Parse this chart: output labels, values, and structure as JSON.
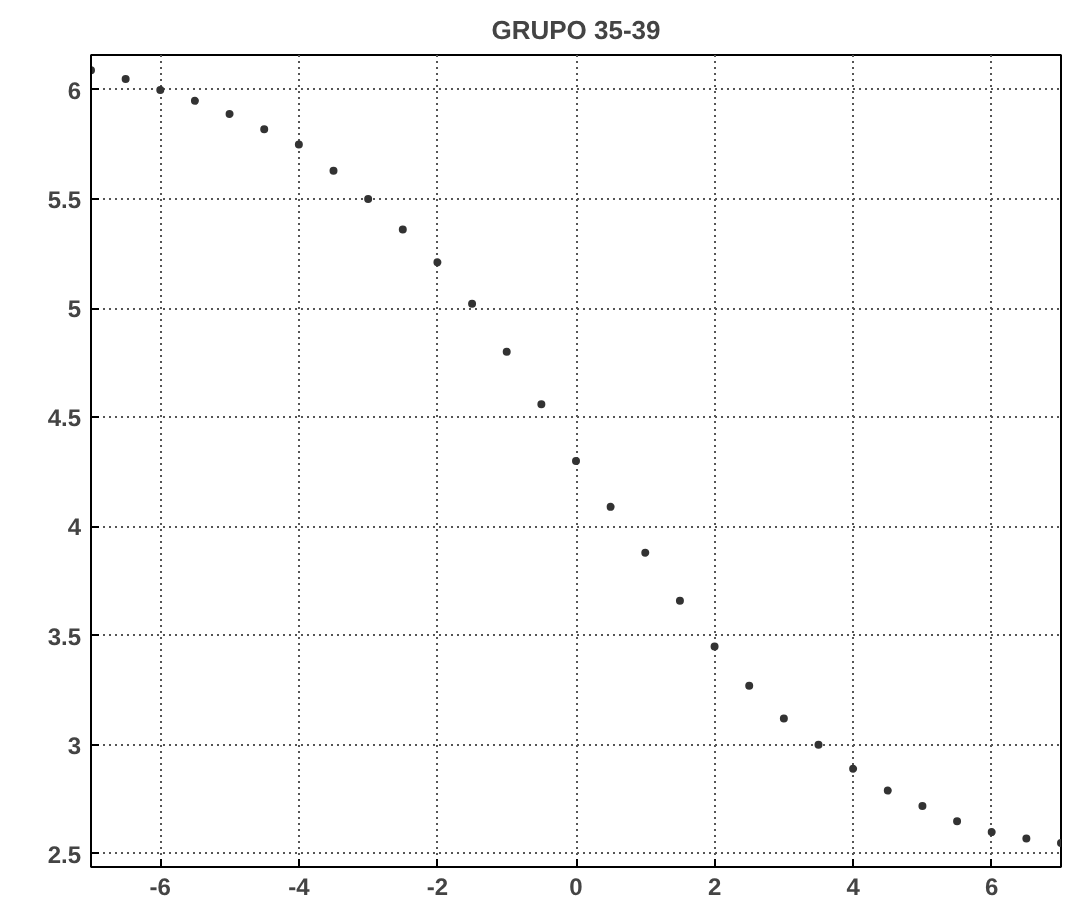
{
  "chart_data": {
    "type": "scatter",
    "title": "GRUPO 35-39",
    "x": [
      -7,
      -6.5,
      -6,
      -5.5,
      -5,
      -4.5,
      -4,
      -3.5,
      -3,
      -2.5,
      -2,
      -1.5,
      -1,
      -0.5,
      0,
      0.5,
      1,
      1.5,
      2,
      2.5,
      3,
      3.5,
      4,
      4.5,
      5,
      5.5,
      6,
      6.5,
      7
    ],
    "series": [
      {
        "color": "#333333",
        "values": [
          6.09,
          6.05,
          6.0,
          5.95,
          5.89,
          5.82,
          5.75,
          5.63,
          5.5,
          5.36,
          5.21,
          5.02,
          4.8,
          4.56,
          4.3,
          4.09,
          3.88,
          3.66,
          3.45,
          3.27,
          3.12,
          3.0,
          2.89,
          2.79,
          2.72,
          2.65,
          2.6,
          2.57,
          2.55
        ]
      }
    ],
    "marker": "circle",
    "grid": true,
    "xlim": [
      -7,
      7
    ],
    "ylim": [
      2.44,
      6.16
    ],
    "xticks": [
      {
        "value": -6,
        "label": "-6"
      },
      {
        "value": -4,
        "label": "-4"
      },
      {
        "value": -2,
        "label": "-2"
      },
      0,
      2,
      4,
      6
    ],
    "yticks": [
      2.5,
      3,
      3.5,
      4,
      4.5,
      5,
      5.5,
      6
    ]
  }
}
